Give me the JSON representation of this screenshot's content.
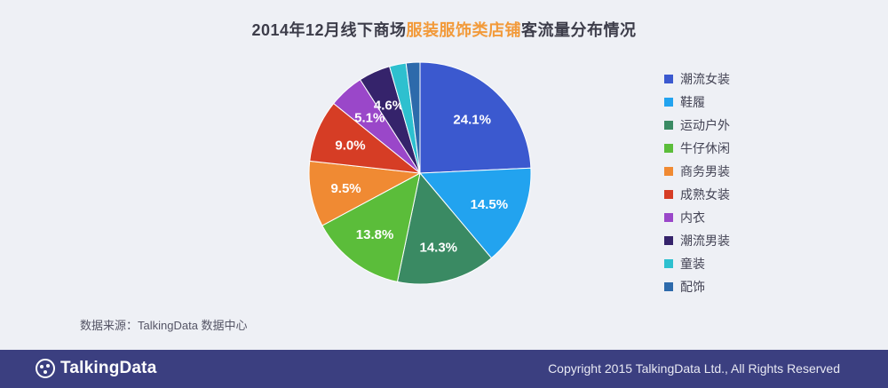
{
  "title": {
    "prefix": "2014年12月线下商场",
    "highlight": "服装服饰类店铺",
    "suffix": "客流量分布情况",
    "highlight_color": "#f29a3a"
  },
  "chart_data": {
    "type": "pie",
    "categories": [
      "潮流女装",
      "鞋履",
      "运动户外",
      "牛仔休闲",
      "商务男装",
      "成熟女装",
      "内衣",
      "潮流男装",
      "童装",
      "配饰"
    ],
    "values": [
      24.1,
      14.5,
      14.3,
      13.8,
      9.5,
      9.0,
      5.1,
      4.6,
      2.4,
      2.0
    ],
    "labels": [
      "24.1%",
      "14.5%",
      "14.3%",
      "13.8%",
      "9.5%",
      "9.0%",
      "5.1%",
      "4.6%",
      "",
      ""
    ],
    "colors": [
      "#3b59cf",
      "#22a3ef",
      "#3a8a63",
      "#5bbd3a",
      "#f08a33",
      "#d63d25",
      "#9a47c9",
      "#35236b",
      "#2ec0cf",
      "#2d6aab"
    ],
    "legend_position": "right"
  },
  "source": "数据来源：TalkingData 数据中心",
  "footer": {
    "logo_text": "TalkingData",
    "copyright": "Copyright 2015 TalkingData Ltd., All Rights Reserved"
  }
}
